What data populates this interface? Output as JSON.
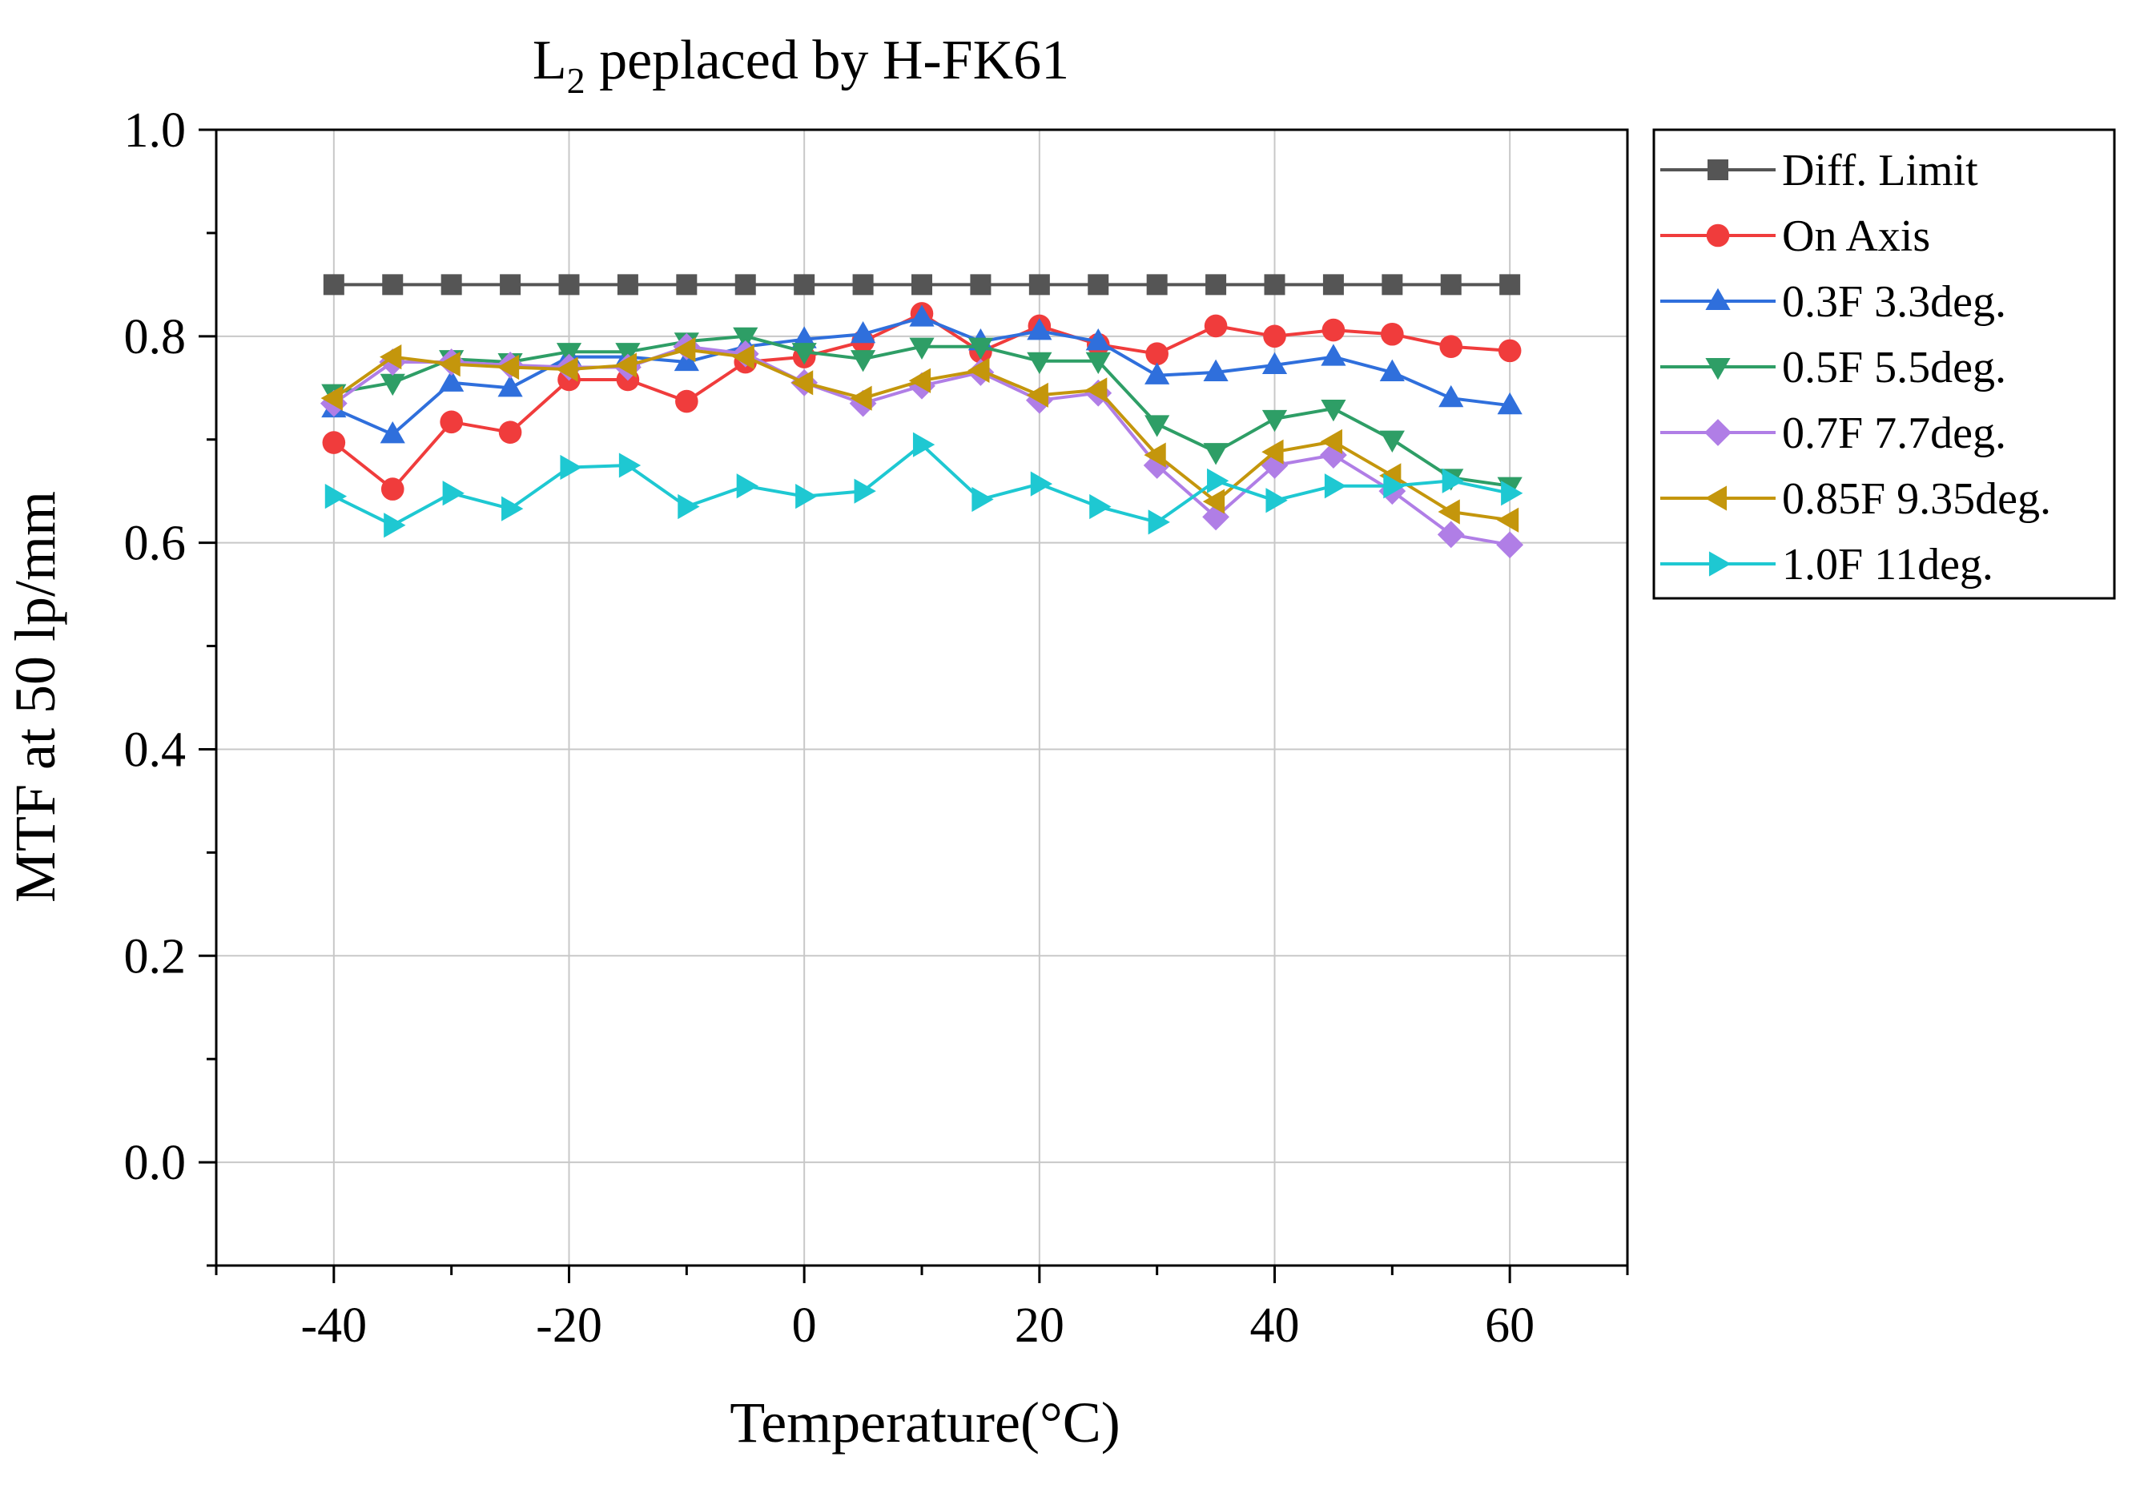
{
  "chart_data": {
    "type": "line",
    "title": {
      "prefix": "L",
      "subscript": "2",
      "suffix": " peplaced by H-FK61"
    },
    "xlabel": "Temperature(°C)",
    "ylabel": "MTF at 50 lp/mm",
    "xlim": [
      -50,
      70
    ],
    "ylim": [
      -0.1,
      1.0
    ],
    "x_ticks": [
      -40,
      -20,
      0,
      20,
      40,
      60
    ],
    "x_tick_labels": [
      "-40",
      "-20",
      "0",
      "20",
      "40",
      "60"
    ],
    "y_ticks": [
      0.0,
      0.2,
      0.4,
      0.6,
      0.8,
      1.0
    ],
    "y_tick_labels": [
      "0.0",
      "0.2",
      "0.4",
      "0.6",
      "0.8",
      "1.0"
    ],
    "grid": true,
    "legend_position": "right",
    "x": [
      -40,
      -35,
      -30,
      -25,
      -20,
      -15,
      -10,
      -5,
      0,
      5,
      10,
      15,
      20,
      25,
      30,
      35,
      40,
      45,
      50,
      55,
      60
    ],
    "series": [
      {
        "name": "Diff. Limit",
        "color": "#555555",
        "marker": "square",
        "values": [
          0.85,
          0.85,
          0.85,
          0.85,
          0.85,
          0.85,
          0.85,
          0.85,
          0.85,
          0.85,
          0.85,
          0.85,
          0.85,
          0.85,
          0.85,
          0.85,
          0.85,
          0.85,
          0.85,
          0.85,
          0.85
        ]
      },
      {
        "name": "On Axis",
        "color": "#f03c3c",
        "marker": "circle",
        "values": [
          0.697,
          0.652,
          0.717,
          0.707,
          0.758,
          0.758,
          0.737,
          0.775,
          0.78,
          0.795,
          0.822,
          0.785,
          0.81,
          0.792,
          0.783,
          0.81,
          0.8,
          0.806,
          0.802,
          0.79,
          0.786
        ]
      },
      {
        "name": "0.3F 3.3deg.",
        "color": "#2f6fdc",
        "marker": "triangle-up",
        "values": [
          0.73,
          0.705,
          0.755,
          0.75,
          0.78,
          0.78,
          0.775,
          0.79,
          0.797,
          0.802,
          0.818,
          0.795,
          0.805,
          0.795,
          0.762,
          0.765,
          0.772,
          0.78,
          0.765,
          0.74,
          0.733
        ]
      },
      {
        "name": "0.5F 5.5deg.",
        "color": "#2e9e66",
        "marker": "triangle-down",
        "values": [
          0.745,
          0.755,
          0.778,
          0.775,
          0.785,
          0.785,
          0.795,
          0.8,
          0.785,
          0.778,
          0.79,
          0.79,
          0.776,
          0.776,
          0.715,
          0.688,
          0.72,
          0.73,
          0.7,
          0.663,
          0.655
        ]
      },
      {
        "name": "0.7F 7.7deg.",
        "color": "#b07ee6",
        "marker": "diamond",
        "values": [
          0.735,
          0.775,
          0.775,
          0.772,
          0.77,
          0.77,
          0.79,
          0.783,
          0.755,
          0.735,
          0.752,
          0.765,
          0.738,
          0.745,
          0.675,
          0.625,
          0.675,
          0.685,
          0.65,
          0.608,
          0.598
        ]
      },
      {
        "name": "0.85F 9.35deg.",
        "color": "#c4960c",
        "marker": "triangle-left",
        "values": [
          0.74,
          0.78,
          0.773,
          0.77,
          0.768,
          0.772,
          0.787,
          0.78,
          0.755,
          0.74,
          0.757,
          0.767,
          0.743,
          0.748,
          0.685,
          0.64,
          0.688,
          0.698,
          0.665,
          0.63,
          0.622
        ]
      },
      {
        "name": "1.0F 11deg.",
        "color": "#1ec8d2",
        "marker": "triangle-right",
        "values": [
          0.645,
          0.617,
          0.648,
          0.633,
          0.673,
          0.675,
          0.635,
          0.655,
          0.645,
          0.65,
          0.695,
          0.642,
          0.657,
          0.635,
          0.62,
          0.66,
          0.641,
          0.655,
          0.655,
          0.66,
          0.648
        ]
      }
    ]
  }
}
